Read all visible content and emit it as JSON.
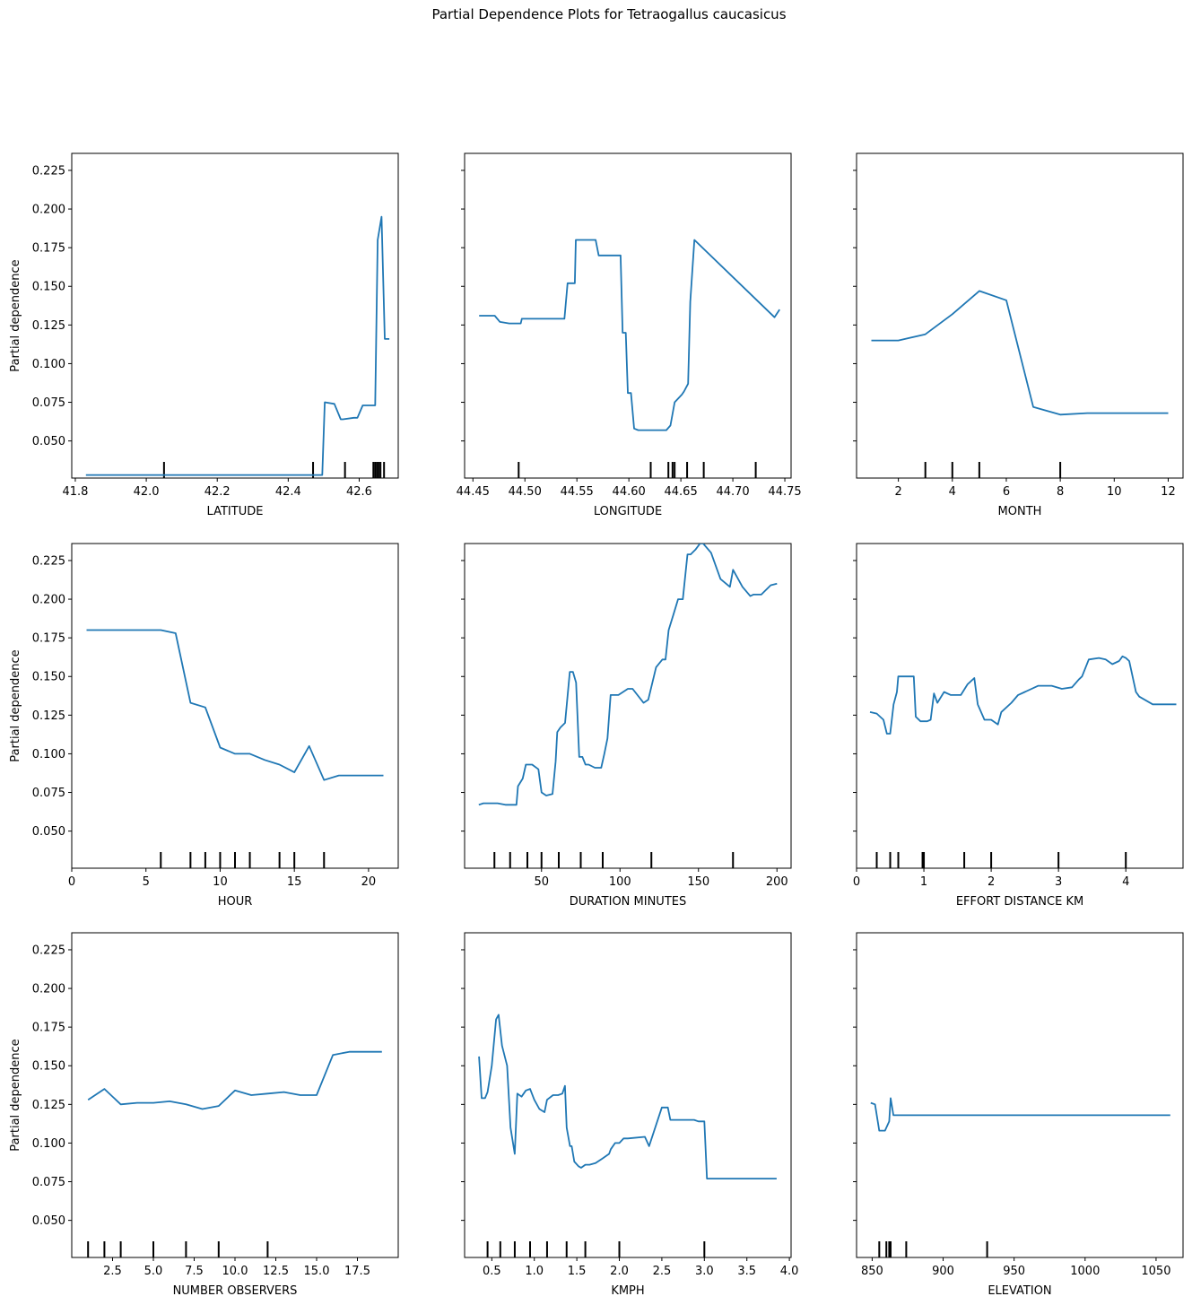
{
  "figure": {
    "title": "Partial Dependence Plots for Tetraogallus caucasicus",
    "line_color": "#1f77b4",
    "rug_color": "#000000"
  },
  "chart_data": [
    {
      "type": "line",
      "xlabel": "LATITUDE",
      "ylabel": "Partial dependence",
      "xlim": [
        41.79,
        42.71
      ],
      "ylim": [
        0.026,
        0.236
      ],
      "xticks": [
        41.8,
        42.0,
        42.2,
        42.4,
        42.6
      ],
      "xtick_labels": [
        "41.8",
        "42.0",
        "42.2",
        "42.4",
        "42.6"
      ],
      "yticks": [
        0.05,
        0.075,
        0.1,
        0.125,
        0.15,
        0.175,
        0.2,
        0.225
      ],
      "ytick_labels": [
        "0.050",
        "0.075",
        "0.100",
        "0.125",
        "0.150",
        "0.175",
        "0.200",
        "0.225"
      ],
      "x": [
        41.83,
        42.496,
        42.503,
        42.53,
        42.548,
        42.554,
        42.585,
        42.595,
        42.61,
        42.645,
        42.652,
        42.663,
        42.672,
        42.685
      ],
      "y": [
        0.028,
        0.028,
        0.075,
        0.074,
        0.064,
        0.064,
        0.065,
        0.065,
        0.073,
        0.073,
        0.18,
        0.195,
        0.116,
        0.116
      ],
      "deciles": [
        42.05,
        42.47,
        42.56,
        42.64,
        42.645,
        42.65,
        42.655,
        42.66,
        42.67
      ]
    },
    {
      "type": "line",
      "xlabel": "LONGITUDE",
      "ylabel": "",
      "xlim": [
        44.442,
        44.756
      ],
      "ylim": [
        0.026,
        0.236
      ],
      "xticks": [
        44.45,
        44.5,
        44.55,
        44.6,
        44.65,
        44.7,
        44.75
      ],
      "xtick_labels": [
        "44.45",
        "44.50",
        "44.55",
        "44.60",
        "44.65",
        "44.70",
        "44.75"
      ],
      "yticks": [
        0.05,
        0.075,
        0.1,
        0.125,
        0.15,
        0.175,
        0.2,
        0.225
      ],
      "ytick_labels": [],
      "x": [
        44.456,
        44.471,
        44.476,
        44.485,
        44.496,
        44.497,
        44.538,
        44.541,
        44.548,
        44.549,
        44.568,
        44.571,
        44.592,
        44.594,
        44.597,
        44.599,
        44.602,
        44.605,
        44.609,
        44.636,
        44.64,
        44.644,
        44.651,
        44.653,
        44.657,
        44.659,
        44.663,
        44.74,
        44.745
      ],
      "y": [
        0.131,
        0.131,
        0.127,
        0.126,
        0.126,
        0.129,
        0.129,
        0.152,
        0.152,
        0.18,
        0.18,
        0.17,
        0.17,
        0.12,
        0.12,
        0.081,
        0.081,
        0.058,
        0.057,
        0.057,
        0.06,
        0.075,
        0.08,
        0.082,
        0.087,
        0.14,
        0.18,
        0.13,
        0.135
      ],
      "deciles": [
        44.494,
        44.621,
        44.638,
        44.642,
        44.644,
        44.656,
        44.672,
        44.722
      ]
    },
    {
      "type": "line",
      "xlabel": "MONTH",
      "ylabel": "",
      "xlim": [
        0.45,
        12.55
      ],
      "ylim": [
        0.026,
        0.236
      ],
      "xticks": [
        2,
        4,
        6,
        8,
        10,
        12
      ],
      "xtick_labels": [
        "2",
        "4",
        "6",
        "8",
        "10",
        "12"
      ],
      "yticks": [
        0.05,
        0.075,
        0.1,
        0.125,
        0.15,
        0.175,
        0.2,
        0.225
      ],
      "ytick_labels": [],
      "x": [
        1,
        2,
        3,
        4,
        5,
        6,
        7,
        8,
        9,
        10,
        11,
        12
      ],
      "y": [
        0.115,
        0.115,
        0.119,
        0.132,
        0.147,
        0.141,
        0.072,
        0.067,
        0.068,
        0.068,
        0.068,
        0.068
      ],
      "deciles": [
        3,
        4,
        5,
        8
      ]
    },
    {
      "type": "line",
      "xlabel": "HOUR",
      "ylabel": "Partial dependence",
      "xlim": [
        0,
        22
      ],
      "ylim": [
        0.026,
        0.236
      ],
      "xticks": [
        0,
        5,
        10,
        15,
        20
      ],
      "xtick_labels": [
        "0",
        "5",
        "10",
        "15",
        "20"
      ],
      "yticks": [
        0.05,
        0.075,
        0.1,
        0.125,
        0.15,
        0.175,
        0.2,
        0.225
      ],
      "ytick_labels": [
        "0.050",
        "0.075",
        "0.100",
        "0.125",
        "0.150",
        "0.175",
        "0.200",
        "0.225"
      ],
      "x": [
        1,
        6,
        7,
        8,
        9,
        10,
        11,
        12,
        13,
        14,
        15,
        16,
        17,
        18,
        19,
        20,
        21
      ],
      "y": [
        0.18,
        0.18,
        0.178,
        0.133,
        0.13,
        0.104,
        0.1,
        0.1,
        0.096,
        0.093,
        0.088,
        0.105,
        0.083,
        0.086,
        0.086,
        0.086,
        0.086
      ],
      "deciles": [
        6,
        8,
        9,
        10,
        11,
        12,
        14,
        15,
        17
      ]
    },
    {
      "type": "line",
      "xlabel": "DURATION MINUTES",
      "ylabel": "",
      "xlim": [
        1,
        209
      ],
      "ylim": [
        0.026,
        0.236
      ],
      "xticks": [
        50,
        100,
        150,
        200
      ],
      "xtick_labels": [
        "50",
        "100",
        "150",
        "200"
      ],
      "yticks": [
        0.05,
        0.075,
        0.1,
        0.125,
        0.15,
        0.175,
        0.2,
        0.225
      ],
      "ytick_labels": [],
      "x": [
        10,
        13,
        20,
        22,
        27,
        34,
        35,
        38,
        40,
        44,
        48,
        50,
        53,
        57,
        59,
        60,
        62,
        65,
        68,
        70,
        72,
        74,
        76,
        78,
        80,
        84,
        88,
        90,
        92,
        94,
        96,
        99,
        105,
        108,
        115,
        118,
        123,
        127,
        129,
        131,
        134,
        137,
        140,
        143,
        145,
        148,
        151,
        153,
        158,
        164,
        170,
        172,
        178,
        183,
        185,
        190,
        196,
        200
      ],
      "y": [
        0.067,
        0.068,
        0.068,
        0.068,
        0.067,
        0.067,
        0.079,
        0.084,
        0.093,
        0.093,
        0.09,
        0.075,
        0.073,
        0.074,
        0.095,
        0.114,
        0.117,
        0.12,
        0.153,
        0.153,
        0.146,
        0.098,
        0.098,
        0.093,
        0.093,
        0.091,
        0.091,
        0.1,
        0.11,
        0.138,
        0.138,
        0.138,
        0.142,
        0.142,
        0.133,
        0.135,
        0.156,
        0.161,
        0.161,
        0.18,
        0.19,
        0.2,
        0.2,
        0.229,
        0.229,
        0.232,
        0.236,
        0.236,
        0.23,
        0.213,
        0.208,
        0.219,
        0.208,
        0.202,
        0.203,
        0.203,
        0.209,
        0.21
      ],
      "deciles": [
        20,
        30,
        41,
        50,
        61,
        75,
        89,
        120,
        172
      ]
    },
    {
      "type": "line",
      "xlabel": "EFFORT DISTANCE KM",
      "ylabel": "",
      "xlim": [
        0,
        4.85
      ],
      "ylim": [
        0.026,
        0.236
      ],
      "xticks": [
        0,
        1,
        2,
        3,
        4
      ],
      "xtick_labels": [
        "0",
        "1",
        "2",
        "3",
        "4"
      ],
      "yticks": [
        0.05,
        0.075,
        0.1,
        0.125,
        0.15,
        0.175,
        0.2,
        0.225
      ],
      "ytick_labels": [],
      "x": [
        0.2,
        0.3,
        0.4,
        0.45,
        0.5,
        0.55,
        0.6,
        0.62,
        0.7,
        0.85,
        0.88,
        0.95,
        1.05,
        1.1,
        1.15,
        1.2,
        1.3,
        1.4,
        1.55,
        1.65,
        1.75,
        1.8,
        1.9,
        2.0,
        2.1,
        2.15,
        2.3,
        2.4,
        2.5,
        2.7,
        2.9,
        3.05,
        3.2,
        3.3,
        3.35,
        3.45,
        3.6,
        3.7,
        3.8,
        3.9,
        3.95,
        4.0,
        4.05,
        4.15,
        4.2,
        4.4,
        4.75
      ],
      "y": [
        0.127,
        0.126,
        0.122,
        0.113,
        0.113,
        0.132,
        0.14,
        0.15,
        0.15,
        0.15,
        0.124,
        0.121,
        0.121,
        0.122,
        0.139,
        0.133,
        0.14,
        0.138,
        0.138,
        0.145,
        0.149,
        0.132,
        0.122,
        0.122,
        0.119,
        0.127,
        0.133,
        0.138,
        0.14,
        0.144,
        0.144,
        0.142,
        0.143,
        0.148,
        0.15,
        0.161,
        0.162,
        0.161,
        0.158,
        0.16,
        0.163,
        0.162,
        0.16,
        0.14,
        0.137,
        0.132,
        0.132
      ],
      "deciles": [
        0.3,
        0.5,
        0.62,
        0.98,
        1.0,
        1.6,
        2.0,
        3.0,
        4.0
      ]
    },
    {
      "type": "line",
      "xlabel": "NUMBER OBSERVERS",
      "ylabel": "Partial dependence",
      "xlim": [
        0,
        20
      ],
      "ylim": [
        0.026,
        0.236
      ],
      "xticks": [
        2.5,
        5.0,
        7.5,
        10.0,
        12.5,
        15.0,
        17.5
      ],
      "xtick_labels": [
        "2.5",
        "5.0",
        "7.5",
        "10.0",
        "12.5",
        "15.0",
        "17.5"
      ],
      "yticks": [
        0.05,
        0.075,
        0.1,
        0.125,
        0.15,
        0.175,
        0.2,
        0.225
      ],
      "ytick_labels": [
        "0.050",
        "0.075",
        "0.100",
        "0.125",
        "0.150",
        "0.175",
        "0.200",
        "0.225"
      ],
      "x": [
        1,
        2,
        3,
        4,
        5,
        6,
        7,
        8,
        9,
        10,
        11,
        12,
        13,
        14,
        15,
        16,
        17,
        18,
        19
      ],
      "y": [
        0.128,
        0.135,
        0.125,
        0.126,
        0.126,
        0.127,
        0.125,
        0.122,
        0.124,
        0.134,
        0.131,
        0.132,
        0.133,
        0.131,
        0.131,
        0.157,
        0.159,
        0.159,
        0.159
      ],
      "deciles": [
        1,
        2,
        3,
        5,
        7,
        9,
        12
      ]
    },
    {
      "type": "line",
      "xlabel": "KMPH",
      "ylabel": "",
      "xlim": [
        0.18,
        4.02
      ],
      "ylim": [
        0.026,
        0.236
      ],
      "xticks": [
        0.5,
        1.0,
        1.5,
        2.0,
        2.5,
        3.0,
        3.5,
        4.0
      ],
      "xtick_labels": [
        "0.5",
        "1.0",
        "1.5",
        "2.0",
        "2.5",
        "3.0",
        "3.5",
        "4.0"
      ],
      "yticks": [
        0.05,
        0.075,
        0.1,
        0.125,
        0.15,
        0.175,
        0.2,
        0.225
      ],
      "ytick_labels": [],
      "x": [
        0.35,
        0.38,
        0.42,
        0.45,
        0.5,
        0.55,
        0.58,
        0.62,
        0.68,
        0.72,
        0.77,
        0.8,
        0.85,
        0.9,
        0.95,
        1.0,
        1.06,
        1.12,
        1.15,
        1.22,
        1.28,
        1.33,
        1.36,
        1.38,
        1.42,
        1.44,
        1.47,
        1.52,
        1.55,
        1.6,
        1.65,
        1.72,
        1.8,
        1.88,
        1.9,
        1.95,
        2.0,
        2.05,
        2.1,
        2.3,
        2.35,
        2.5,
        2.57,
        2.6,
        2.88,
        2.93,
        3.0,
        3.03,
        3.85
      ],
      "y": [
        0.156,
        0.129,
        0.129,
        0.133,
        0.15,
        0.18,
        0.183,
        0.163,
        0.15,
        0.11,
        0.093,
        0.132,
        0.13,
        0.134,
        0.135,
        0.128,
        0.122,
        0.12,
        0.128,
        0.131,
        0.131,
        0.132,
        0.137,
        0.11,
        0.098,
        0.098,
        0.088,
        0.085,
        0.084,
        0.086,
        0.086,
        0.087,
        0.09,
        0.093,
        0.096,
        0.1,
        0.1,
        0.103,
        0.103,
        0.104,
        0.098,
        0.123,
        0.123,
        0.115,
        0.115,
        0.114,
        0.114,
        0.077,
        0.077
      ],
      "deciles": [
        0.45,
        0.6,
        0.77,
        0.95,
        1.15,
        1.38,
        1.6,
        2.0,
        3.0
      ]
    },
    {
      "type": "line",
      "xlabel": "ELEVATION",
      "ylabel": "",
      "xlim": [
        839,
        1069
      ],
      "ylim": [
        0.026,
        0.236
      ],
      "xticks": [
        850,
        900,
        950,
        1000,
        1050
      ],
      "xtick_labels": [
        "850",
        "900",
        "950",
        "1000",
        "1050"
      ],
      "yticks": [
        0.05,
        0.075,
        0.1,
        0.125,
        0.15,
        0.175,
        0.2,
        0.225
      ],
      "ytick_labels": [],
      "x": [
        849,
        852,
        855,
        859,
        862,
        863,
        865,
        866,
        1060
      ],
      "y": [
        0.126,
        0.125,
        0.108,
        0.108,
        0.114,
        0.129,
        0.118,
        0.118,
        0.118
      ],
      "deciles": [
        855,
        860,
        862,
        863,
        874,
        931
      ]
    }
  ]
}
